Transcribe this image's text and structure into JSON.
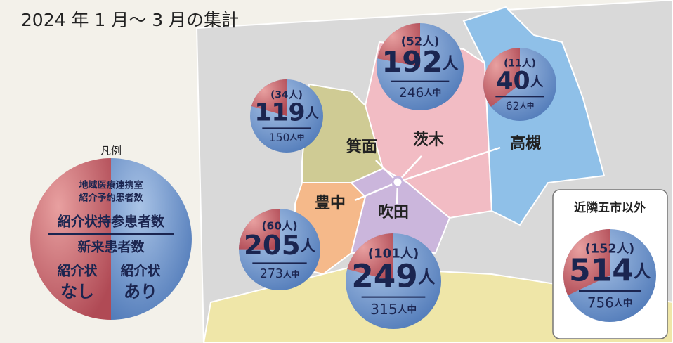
{
  "title": "2024 年 1 月～ 3 月の集計",
  "unit": "人",
  "total_unit": "人中",
  "areas": [
    {
      "name": "箕面",
      "registered": "(34人)",
      "referred": 119,
      "total": 150
    },
    {
      "name": "茨木",
      "registered": "(52人)",
      "referred": 192,
      "total": 246
    },
    {
      "name": "高槻",
      "registered": "(11人)",
      "referred": 40,
      "total": 62
    },
    {
      "name": "豊中",
      "registered": "(60人)",
      "referred": 205,
      "total": 273
    },
    {
      "name": "吹田",
      "registered": "(101人)",
      "referred": 249,
      "total": 315
    }
  ],
  "outside": {
    "name": "近隣五市以外",
    "registered": "(152人)",
    "referred": 514,
    "total": 756
  },
  "legend": {
    "title": "凡例",
    "registered_lines": [
      "地域医療連携室",
      "紹介予約患者数"
    ],
    "referred": "紹介状持参患者数",
    "total": "新来患者数",
    "without": [
      "紹介状",
      "なし"
    ],
    "with": [
      "紹介状",
      "あり"
    ]
  }
}
